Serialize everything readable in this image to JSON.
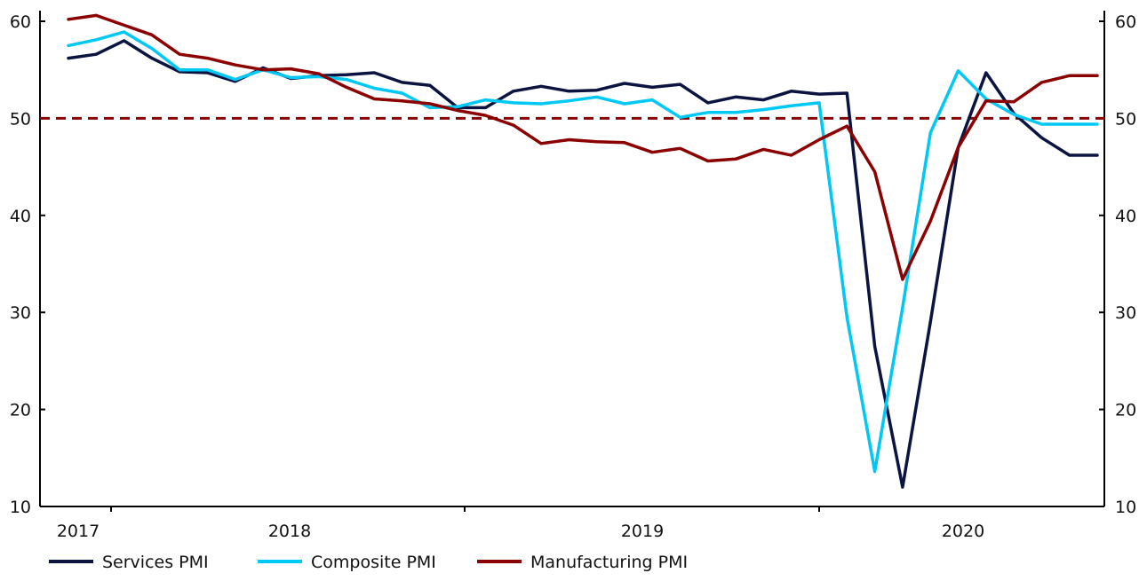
{
  "chart_data": {
    "type": "line",
    "title": "",
    "xlabel": "",
    "ylabel": "",
    "x_tick_labels": [
      "2017",
      "2018",
      "2019",
      "2020"
    ],
    "ylim": [
      10,
      60
    ],
    "y_ticks": [
      10,
      20,
      30,
      40,
      50,
      60
    ],
    "y_ticks_right": [
      10,
      20,
      30,
      40,
      50,
      60
    ],
    "reference_line": {
      "value": 50,
      "style": "dashed",
      "color": "#8b0000"
    },
    "grid": false,
    "legend_position": "bottom-left",
    "x": [
      "2017-01",
      "2017-02",
      "2017-03",
      "2017-04",
      "2017-05",
      "2017-06",
      "2017-07",
      "2017-08",
      "2017-09",
      "2017-10",
      "2017-11",
      "2017-12",
      "2018-01",
      "2018-02",
      "2018-03",
      "2018-04",
      "2018-05",
      "2018-06",
      "2018-07",
      "2018-08",
      "2018-09",
      "2018-10",
      "2018-11",
      "2018-12",
      "2019-01",
      "2019-02",
      "2019-03",
      "2019-04",
      "2019-05",
      "2019-06",
      "2019-07",
      "2019-08",
      "2019-09",
      "2019-10",
      "2019-11",
      "2019-12",
      "2020-01",
      "2020-02"
    ],
    "series": [
      {
        "name": "Services PMI",
        "color": "#0b1340",
        "values": [
          56.2,
          56.6,
          58.0,
          56.2,
          54.8,
          54.7,
          53.8,
          55.2,
          54.1,
          54.4,
          54.5,
          54.7,
          53.7,
          53.4,
          51.1,
          51.1,
          52.8,
          53.3,
          52.8,
          52.9,
          53.6,
          53.2,
          53.5,
          51.6,
          52.2,
          51.9,
          52.8,
          52.5,
          52.6,
          26.5,
          12.0,
          29.0,
          47.0,
          54.7,
          50.5,
          48.0,
          46.2,
          46.2
        ]
      },
      {
        "name": "Composite PMI",
        "color": "#00c8f5",
        "values": [
          57.5,
          58.1,
          58.9,
          57.2,
          55.0,
          55.0,
          54.0,
          55.0,
          54.2,
          54.3,
          54.0,
          53.1,
          52.6,
          51.1,
          51.2,
          51.9,
          51.6,
          51.5,
          51.8,
          52.2,
          51.5,
          51.9,
          50.1,
          50.6,
          50.6,
          50.9,
          51.3,
          51.6,
          29.5,
          13.6,
          30.5,
          48.5,
          54.9,
          52.0,
          50.4,
          49.4,
          49.4,
          49.4
        ]
      },
      {
        "name": "Manufacturing PMI",
        "color": "#8b0000",
        "values": [
          60.2,
          60.6,
          59.6,
          58.6,
          56.6,
          56.2,
          55.5,
          55.0,
          55.1,
          54.6,
          53.2,
          52.0,
          51.8,
          51.5,
          50.8,
          50.3,
          49.3,
          47.4,
          47.8,
          47.6,
          47.5,
          46.5,
          46.9,
          45.6,
          45.8,
          46.8,
          46.2,
          47.8,
          49.2,
          44.5,
          33.4,
          39.4,
          47.0,
          51.8,
          51.7,
          53.7,
          54.4,
          54.4
        ]
      }
    ]
  }
}
